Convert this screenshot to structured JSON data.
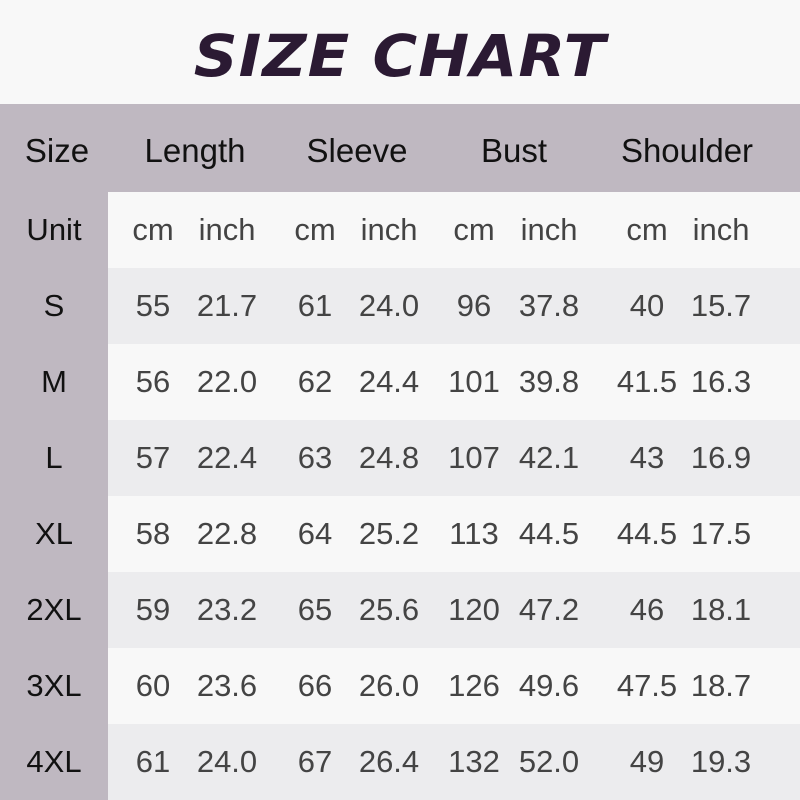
{
  "title": "SIZE CHART",
  "colors": {
    "header": "#bfb8c1",
    "title": "#2b1a33",
    "stripe": "#ececee",
    "white": "#f8f8f8"
  },
  "headers": [
    "Size",
    "Length",
    "Sleeve",
    "Bust",
    "Shoulder"
  ],
  "units": {
    "label": "Unit",
    "values": [
      "cm",
      "inch",
      "cm",
      "inch",
      "cm",
      "inch",
      "cm",
      "inch"
    ]
  },
  "rows": [
    {
      "size": "S",
      "values": [
        "55",
        "21.7",
        "61",
        "24.0",
        "96",
        "37.8",
        "40",
        "15.7"
      ]
    },
    {
      "size": "M",
      "values": [
        "56",
        "22.0",
        "62",
        "24.4",
        "101",
        "39.8",
        "41.5",
        "16.3"
      ]
    },
    {
      "size": "L",
      "values": [
        "57",
        "22.4",
        "63",
        "24.8",
        "107",
        "42.1",
        "43",
        "16.9"
      ]
    },
    {
      "size": "XL",
      "values": [
        "58",
        "22.8",
        "64",
        "25.2",
        "113",
        "44.5",
        "44.5",
        "17.5"
      ]
    },
    {
      "size": "2XL",
      "values": [
        "59",
        "23.2",
        "65",
        "25.6",
        "120",
        "47.2",
        "46",
        "18.1"
      ]
    },
    {
      "size": "3XL",
      "values": [
        "60",
        "23.6",
        "66",
        "26.0",
        "126",
        "49.6",
        "47.5",
        "18.7"
      ]
    },
    {
      "size": "4XL",
      "values": [
        "61",
        "24.0",
        "67",
        "26.4",
        "132",
        "52.0",
        "49",
        "19.3"
      ]
    }
  ]
}
